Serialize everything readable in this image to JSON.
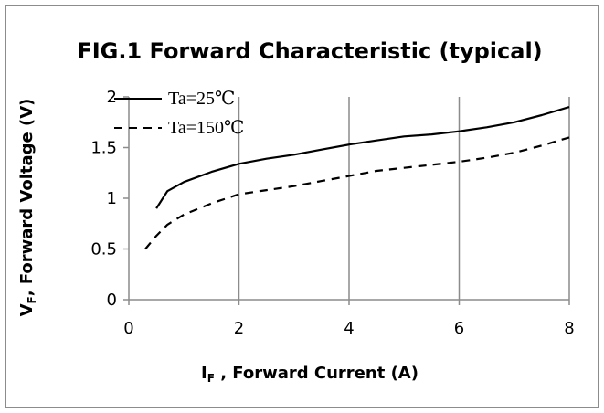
{
  "chart_data": {
    "type": "line",
    "title": "FIG.1 Forward Characteristic (typical)",
    "xlabel": {
      "main": "I",
      "sub": "F",
      "rest": " , Forward Current (A)"
    },
    "ylabel": {
      "main": "V",
      "sub": "F",
      "rest": ", Forward Voltage (V)"
    },
    "xlim": [
      0,
      8
    ],
    "ylim": [
      0,
      2
    ],
    "xticks": [
      "0",
      "2",
      "4",
      "6",
      "8"
    ],
    "yticks": [
      "0",
      "0.5",
      "1",
      "1.5",
      "2"
    ],
    "xtick_values": [
      0,
      2,
      4,
      6,
      8
    ],
    "ytick_values": [
      0,
      0.5,
      1,
      1.5,
      2
    ],
    "grid": "vertical",
    "legend_position": "top-left",
    "series": [
      {
        "name": "Ta=25℃",
        "style": "solid",
        "color": "#000000",
        "x": [
          0.5,
          0.7,
          1.0,
          1.5,
          2.0,
          2.5,
          3.0,
          3.5,
          4.0,
          4.5,
          5.0,
          5.5,
          6.0,
          6.5,
          7.0,
          7.5,
          8.0
        ],
        "y": [
          0.9,
          1.07,
          1.16,
          1.26,
          1.34,
          1.39,
          1.43,
          1.48,
          1.53,
          1.57,
          1.61,
          1.63,
          1.66,
          1.7,
          1.75,
          1.82,
          1.9
        ]
      },
      {
        "name": "Ta=150℃",
        "style": "dashed",
        "color": "#000000",
        "x": [
          0.3,
          0.5,
          0.7,
          1.0,
          1.5,
          2.0,
          2.5,
          3.0,
          3.5,
          4.0,
          4.5,
          5.0,
          5.5,
          6.0,
          6.5,
          7.0,
          7.5,
          8.0
        ],
        "y": [
          0.5,
          0.63,
          0.74,
          0.84,
          0.95,
          1.04,
          1.08,
          1.12,
          1.17,
          1.22,
          1.27,
          1.3,
          1.33,
          1.36,
          1.4,
          1.45,
          1.52,
          1.6
        ]
      }
    ]
  }
}
